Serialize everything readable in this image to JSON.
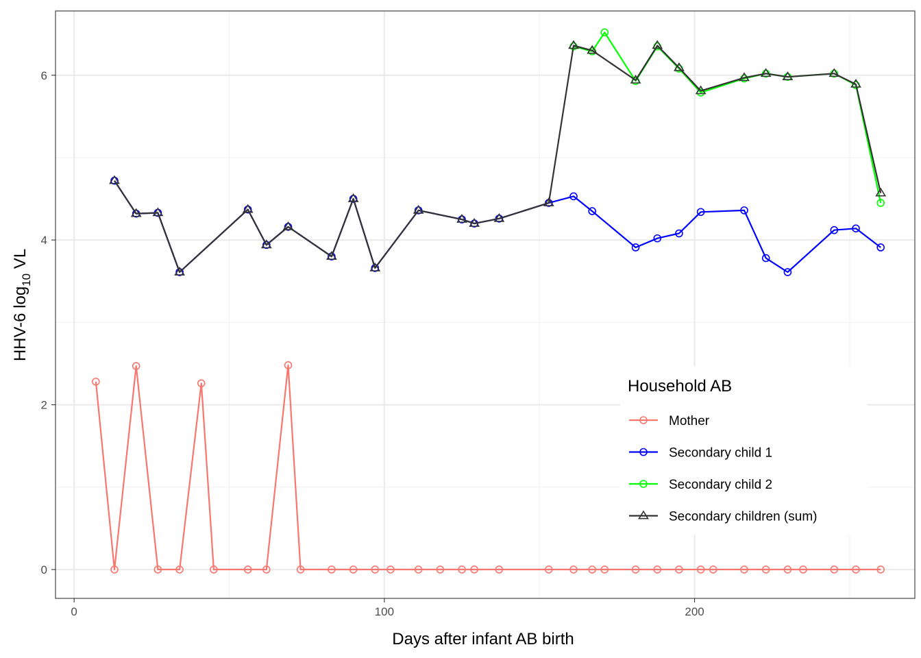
{
  "chart_data": {
    "type": "line",
    "xlabel": "Days after infant AB birth",
    "ylabel_parts": [
      "HHV-6 log",
      "10",
      " VL"
    ],
    "xlim": [
      -6,
      271
    ],
    "ylim": [
      -0.35,
      6.78
    ],
    "x_ticks": [
      0,
      100,
      200
    ],
    "y_ticks": [
      0,
      2,
      4,
      6
    ],
    "x_minor_gridlines": [
      50,
      150,
      250
    ],
    "y_minor_gridlines": [
      1,
      3,
      5
    ],
    "grid": true,
    "legend": {
      "title": "Household AB",
      "placement": "inside-right",
      "labels": [
        "Mother",
        "Secondary child 1",
        "Secondary child 2",
        "Secondary children (sum)"
      ]
    },
    "series": [
      {
        "name": "Mother",
        "color": "#F8766D",
        "marker": "circle",
        "x": [
          7,
          13,
          20,
          27,
          34,
          41,
          45,
          56,
          62,
          69,
          73,
          83,
          90,
          97,
          102,
          111,
          118,
          125,
          129,
          137,
          153,
          161,
          167,
          171,
          181,
          188,
          195,
          202,
          206,
          216,
          223,
          230,
          235,
          245,
          252,
          260
        ],
        "y": [
          2.28,
          0,
          2.47,
          0,
          0,
          2.26,
          0,
          0,
          0,
          2.48,
          0,
          0,
          0,
          0,
          0,
          0,
          0,
          0,
          0,
          0,
          0,
          0,
          0,
          0,
          0,
          0,
          0,
          0,
          0,
          0,
          0,
          0,
          0,
          0,
          0,
          0
        ]
      },
      {
        "name": "Secondary child 1",
        "color": "#0000FF",
        "marker": "circle",
        "x": [
          13,
          20,
          27,
          34,
          56,
          62,
          69,
          83,
          90,
          97,
          111,
          125,
          129,
          137,
          153,
          161,
          167,
          181,
          188,
          195,
          202,
          216,
          223,
          230,
          245,
          252,
          260
        ],
        "y": [
          4.72,
          4.32,
          4.33,
          3.61,
          4.37,
          3.94,
          4.16,
          3.8,
          4.5,
          3.66,
          4.36,
          4.25,
          4.2,
          4.26,
          4.45,
          4.53,
          4.35,
          3.91,
          4.02,
          4.08,
          4.34,
          4.36,
          3.78,
          3.61,
          4.12,
          4.14,
          3.91
        ]
      },
      {
        "name": "Secondary child 2",
        "color": "#00FF00",
        "marker": "circle",
        "x": [
          161,
          167,
          171,
          181,
          188,
          195,
          202,
          216,
          223,
          230,
          245,
          252,
          260
        ],
        "y": [
          6.35,
          6.29,
          6.52,
          5.93,
          6.35,
          6.08,
          5.79,
          5.96,
          6.02,
          5.98,
          6.02,
          5.88,
          4.45
        ]
      },
      {
        "name": "Secondary children (sum)",
        "color": "#333333",
        "marker": "triangle",
        "x": [
          13,
          20,
          27,
          34,
          56,
          62,
          69,
          83,
          90,
          97,
          111,
          125,
          129,
          137,
          153,
          161,
          167,
          181,
          188,
          195,
          202,
          216,
          223,
          230,
          245,
          252,
          260
        ],
        "y": [
          4.72,
          4.32,
          4.33,
          3.61,
          4.37,
          3.94,
          4.16,
          3.8,
          4.5,
          3.66,
          4.36,
          4.25,
          4.2,
          4.26,
          4.45,
          6.36,
          6.3,
          5.94,
          6.36,
          6.09,
          5.81,
          5.97,
          6.02,
          5.98,
          6.02,
          5.89,
          4.57
        ]
      }
    ]
  }
}
